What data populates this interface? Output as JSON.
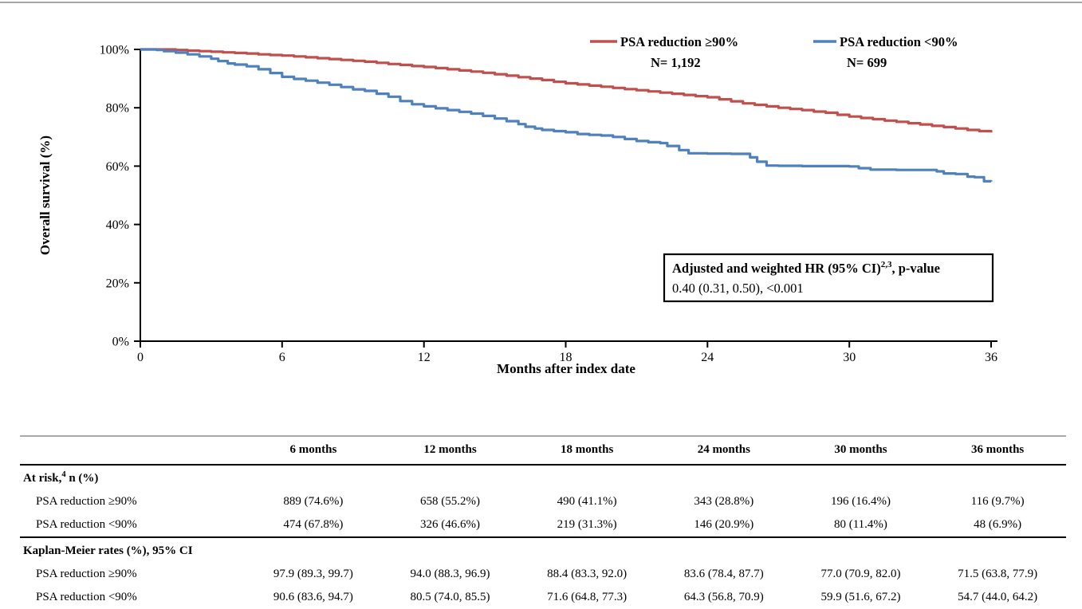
{
  "page": {
    "background": "#ffffff"
  },
  "chart": {
    "y_axis_title": "Overall survival (%)",
    "x_axis_title": "Months after index date",
    "y_tick_labels": [
      "100%",
      "80%",
      "60%",
      "40%",
      "20%",
      "0%"
    ],
    "x_tick_labels": [
      "0",
      "6",
      "12",
      "18",
      "24",
      "30",
      "36"
    ],
    "legend": [
      {
        "label": "PSA reduction ≥90%",
        "n_label": "N= 1,192",
        "color": "#C0504D"
      },
      {
        "label": "PSA reduction <90%",
        "n_label": "N= 699",
        "color": "#4F81BD"
      }
    ],
    "annotation": {
      "line1_main": "Adjusted and weighted HR (95% CI)",
      "line1_sup": "2,3",
      "line1_rest": ", p-value",
      "line2": "0.40 (0.31, 0.50), <0.001"
    }
  },
  "chart_data": {
    "type": "line",
    "step": true,
    "title": "",
    "xlabel": "Months after index date",
    "ylabel": "Overall survival (%)",
    "xlim": [
      0,
      36
    ],
    "ylim": [
      0,
      100
    ],
    "xticks": [
      0,
      6,
      12,
      18,
      24,
      30,
      36
    ],
    "yticks": [
      0,
      20,
      40,
      60,
      80,
      100
    ],
    "grid": false,
    "legend_position": "top",
    "annotation_text": "Adjusted and weighted HR (95% CI), p-value: 0.40 (0.31, 0.50), <0.001",
    "series": [
      {
        "name": "PSA reduction ≥90%",
        "n": 1192,
        "color": "#C0504D",
        "km_rates_pct_at_months": {
          "0": 100,
          "6": 97.9,
          "12": 94.0,
          "18": 88.4,
          "24": 83.6,
          "30": 77.0,
          "36": 71.5
        },
        "points": [
          [
            0,
            100
          ],
          [
            1.2,
            100
          ],
          [
            1.5,
            99.8
          ],
          [
            2,
            99.6
          ],
          [
            2.5,
            99.4
          ],
          [
            3,
            99.2
          ],
          [
            3.5,
            99.0
          ],
          [
            4,
            98.8
          ],
          [
            4.5,
            98.6
          ],
          [
            5,
            98.3
          ],
          [
            5.5,
            98.1
          ],
          [
            6,
            97.9
          ],
          [
            6.5,
            97.6
          ],
          [
            7,
            97.3
          ],
          [
            7.5,
            97.0
          ],
          [
            8,
            96.7
          ],
          [
            8.5,
            96.4
          ],
          [
            9,
            96.1
          ],
          [
            9.5,
            95.8
          ],
          [
            10,
            95.4
          ],
          [
            10.5,
            95.0
          ],
          [
            11,
            94.7
          ],
          [
            11.5,
            94.3
          ],
          [
            12,
            94.0
          ],
          [
            12.5,
            93.6
          ],
          [
            13,
            93.2
          ],
          [
            13.5,
            92.8
          ],
          [
            14,
            92.4
          ],
          [
            14.5,
            92.0
          ],
          [
            15,
            91.5
          ],
          [
            15.5,
            91.0
          ],
          [
            16,
            90.5
          ],
          [
            16.5,
            90.0
          ],
          [
            17,
            89.5
          ],
          [
            17.5,
            88.9
          ],
          [
            18,
            88.4
          ],
          [
            18.5,
            88.0
          ],
          [
            19,
            87.6
          ],
          [
            19.5,
            87.2
          ],
          [
            20,
            86.8
          ],
          [
            20.5,
            86.4
          ],
          [
            21,
            86.0
          ],
          [
            21.5,
            85.6
          ],
          [
            22,
            85.2
          ],
          [
            22.5,
            84.8
          ],
          [
            23,
            84.4
          ],
          [
            23.5,
            84.0
          ],
          [
            24,
            83.6
          ],
          [
            24.5,
            82.9
          ],
          [
            25,
            82.2
          ],
          [
            25.5,
            81.5
          ],
          [
            26,
            81.0
          ],
          [
            26.5,
            80.5
          ],
          [
            27,
            80.0
          ],
          [
            27.5,
            79.6
          ],
          [
            28,
            79.2
          ],
          [
            28.5,
            78.7
          ],
          [
            29,
            78.3
          ],
          [
            29.5,
            77.6
          ],
          [
            30,
            77.0
          ],
          [
            30.5,
            76.5
          ],
          [
            31,
            76.1
          ],
          [
            31.5,
            75.6
          ],
          [
            32,
            75.2
          ],
          [
            32.5,
            74.7
          ],
          [
            33,
            74.3
          ],
          [
            33.5,
            73.8
          ],
          [
            34,
            73.4
          ],
          [
            34.5,
            72.9
          ],
          [
            35,
            72.4
          ],
          [
            35.5,
            72.0
          ],
          [
            36,
            71.5
          ]
        ]
      },
      {
        "name": "PSA reduction <90%",
        "n": 699,
        "color": "#4F81BD",
        "km_rates_pct_at_months": {
          "0": 100,
          "6": 90.6,
          "12": 80.5,
          "18": 71.6,
          "24": 64.3,
          "30": 59.9,
          "36": 54.7
        },
        "points": [
          [
            0,
            100
          ],
          [
            0.7,
            99.8
          ],
          [
            1,
            99.4
          ],
          [
            1.5,
            98.9
          ],
          [
            2,
            98.3
          ],
          [
            2.5,
            97.6
          ],
          [
            3,
            96.8
          ],
          [
            3.3,
            96.0
          ],
          [
            3.7,
            95.2
          ],
          [
            4,
            94.8
          ],
          [
            4.5,
            94.2
          ],
          [
            5,
            93.2
          ],
          [
            5.5,
            91.9
          ],
          [
            6,
            90.6
          ],
          [
            6.5,
            89.9
          ],
          [
            7,
            89.3
          ],
          [
            7.5,
            88.6
          ],
          [
            8,
            87.9
          ],
          [
            8.5,
            87.1
          ],
          [
            9,
            86.3
          ],
          [
            9.5,
            85.8
          ],
          [
            10,
            84.8
          ],
          [
            10.5,
            83.8
          ],
          [
            11,
            82.3
          ],
          [
            11.5,
            81.2
          ],
          [
            12,
            80.5
          ],
          [
            12.5,
            79.8
          ],
          [
            13,
            79.2
          ],
          [
            13.5,
            78.6
          ],
          [
            14,
            78.0
          ],
          [
            14.5,
            77.2
          ],
          [
            15,
            76.3
          ],
          [
            15.5,
            75.4
          ],
          [
            16,
            74.4
          ],
          [
            16.3,
            73.5
          ],
          [
            16.7,
            72.9
          ],
          [
            17,
            72.4
          ],
          [
            17.5,
            72.0
          ],
          [
            18,
            71.6
          ],
          [
            18.5,
            71.0
          ],
          [
            19,
            70.7
          ],
          [
            19.5,
            70.5
          ],
          [
            20,
            70.0
          ],
          [
            20.5,
            69.3
          ],
          [
            21,
            68.6
          ],
          [
            21.5,
            68.2
          ],
          [
            22,
            67.9
          ],
          [
            22.3,
            66.9
          ],
          [
            22.8,
            65.5
          ],
          [
            23.2,
            64.4
          ],
          [
            24,
            64.3
          ],
          [
            25,
            64.2
          ],
          [
            25.8,
            63.0
          ],
          [
            26.1,
            61.5
          ],
          [
            26.5,
            60.2
          ],
          [
            27,
            60.1
          ],
          [
            28,
            60.0
          ],
          [
            29,
            60.0
          ],
          [
            30,
            59.9
          ],
          [
            30.4,
            59.3
          ],
          [
            30.9,
            58.8
          ],
          [
            32,
            58.7
          ],
          [
            33,
            58.7
          ],
          [
            33.7,
            58.2
          ],
          [
            34,
            57.5
          ],
          [
            34.5,
            57.3
          ],
          [
            35,
            56.4
          ],
          [
            35.3,
            56.2
          ],
          [
            35.7,
            54.8
          ],
          [
            36,
            54.7
          ]
        ]
      }
    ]
  },
  "table": {
    "columns": [
      "",
      "6 months",
      "12 months",
      "18 months",
      "24 months",
      "30 months",
      "36 months"
    ],
    "sections": [
      {
        "header_main": "At risk,",
        "header_sup": "4",
        "header_rest": " n (%)",
        "rows": [
          {
            "label": "PSA reduction ≥90%",
            "values": [
              "889 (74.6%)",
              "658 (55.2%)",
              "490 (41.1%)",
              "343 (28.8%)",
              "196 (16.4%)",
              "116 (9.7%)"
            ]
          },
          {
            "label": "PSA reduction <90%",
            "values": [
              "474 (67.8%)",
              "326 (46.6%)",
              "219 (31.3%)",
              "146 (20.9%)",
              "80 (11.4%)",
              "48 (6.9%)"
            ]
          }
        ]
      },
      {
        "header_main": "Kaplan-Meier rates (%), 95% CI",
        "header_sup": "",
        "header_rest": "",
        "rows": [
          {
            "label": "PSA reduction ≥90%",
            "values": [
              "97.9 (89.3, 99.7)",
              "94.0 (88.3, 96.9)",
              "88.4 (83.3, 92.0)",
              "83.6 (78.4, 87.7)",
              "77.0 (70.9, 82.0)",
              "71.5 (63.8, 77.9)"
            ]
          },
          {
            "label": "PSA reduction <90%",
            "values": [
              "90.6 (83.6, 94.7)",
              "80.5 (74.0, 85.5)",
              "71.6 (64.8, 77.3)",
              "64.3 (56.8, 70.9)",
              "59.9 (51.6, 67.2)",
              "54.7 (44.0, 64.2)"
            ]
          }
        ]
      }
    ]
  }
}
